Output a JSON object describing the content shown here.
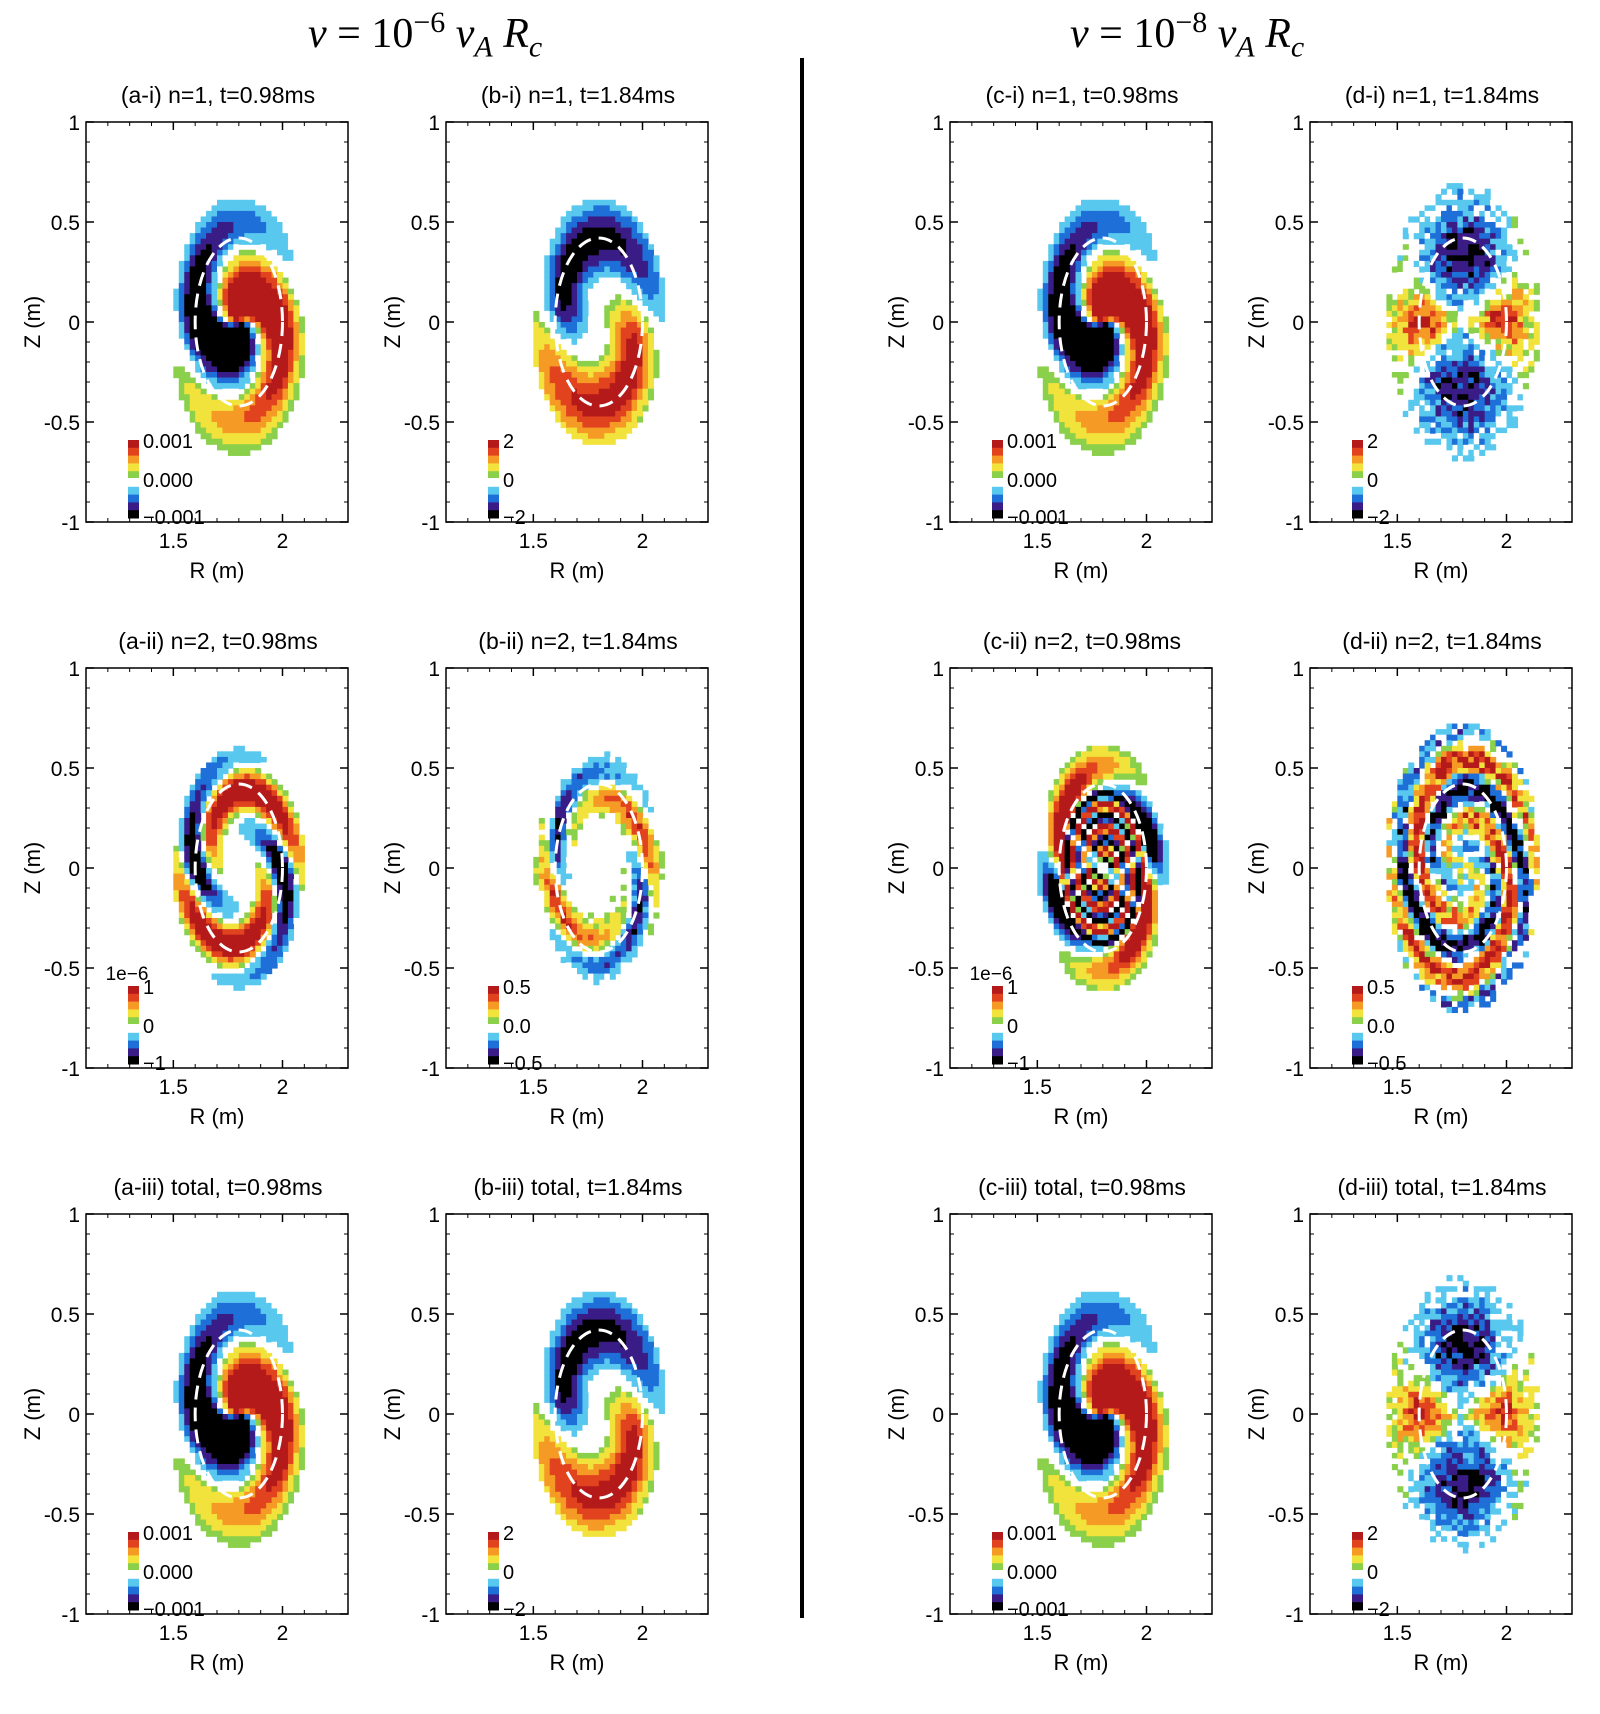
{
  "headers": {
    "left": {
      "nu": "ν",
      "eq": "= 10",
      "exp": "−6",
      "va": "v",
      "va_sub": "A",
      "rc": "R",
      "rc_sub": "c"
    },
    "right": {
      "nu": "ν",
      "eq": "= 10",
      "exp": "−8",
      "va": "v",
      "va_sub": "A",
      "rc": "R",
      "rc_sub": "c"
    }
  },
  "axes": {
    "xlabel": "R (m)",
    "ylabel": "Z (m)",
    "xticks": [
      "1.5",
      "2"
    ],
    "yticks": [
      "1",
      "0.5",
      "0",
      "-0.5",
      "-1"
    ],
    "xlim": [
      1.1,
      2.3
    ],
    "ylim": [
      -1,
      1
    ]
  },
  "colormap": [
    "#000000",
    "#3a1c86",
    "#1f6fd8",
    "#58c8ee",
    "#ffffff",
    "#8ad04a",
    "#f2e23c",
    "#f59a24",
    "#e2431f",
    "#b41a1a"
  ],
  "panels": [
    {
      "id": "a-i",
      "title": "(a-i) n=1, t=0.98ms",
      "cbar": [
        "0.001",
        "0.000",
        "−0.001"
      ],
      "cbar_exp": "",
      "pattern": "smooth"
    },
    {
      "id": "b-i",
      "title": "(b-i) n=1, t=1.84ms",
      "cbar": [
        "2",
        "0",
        "−2"
      ],
      "cbar_exp": "",
      "pattern": "smooth-b"
    },
    {
      "id": "c-i",
      "title": "(c-i) n=1, t=0.98ms",
      "cbar": [
        "0.001",
        "0.000",
        "−0.001"
      ],
      "cbar_exp": "",
      "pattern": "smooth"
    },
    {
      "id": "d-i",
      "title": "(d-i) n=1, t=1.84ms",
      "cbar": [
        "2",
        "0",
        "−2"
      ],
      "cbar_exp": "",
      "pattern": "noisy-b"
    },
    {
      "id": "a-ii",
      "title": "(a-ii) n=2, t=0.98ms",
      "cbar": [
        "1",
        "0",
        "−1"
      ],
      "cbar_exp": "1e−6",
      "pattern": "n2"
    },
    {
      "id": "b-ii",
      "title": "(b-ii) n=2, t=1.84ms",
      "cbar": [
        "0.5",
        "0.0",
        "−0.5"
      ],
      "cbar_exp": "",
      "pattern": "n2-weak"
    },
    {
      "id": "c-ii",
      "title": "(c-ii) n=2, t=0.98ms",
      "cbar": [
        "1",
        "0",
        "−1"
      ],
      "cbar_exp": "1e−6",
      "pattern": "spiral"
    },
    {
      "id": "d-ii",
      "title": "(d-ii) n=2, t=1.84ms",
      "cbar": [
        "0.5",
        "0.0",
        "−0.5"
      ],
      "cbar_exp": "",
      "pattern": "noisy-ring"
    },
    {
      "id": "a-iii",
      "title": "(a-iii) total, t=0.98ms",
      "cbar": [
        "0.001",
        "0.000",
        "−0.001"
      ],
      "cbar_exp": "",
      "pattern": "smooth"
    },
    {
      "id": "b-iii",
      "title": "(b-iii) total, t=1.84ms",
      "cbar": [
        "2",
        "0",
        "−2"
      ],
      "cbar_exp": "",
      "pattern": "smooth-b"
    },
    {
      "id": "c-iii",
      "title": "(c-iii) total, t=0.98ms",
      "cbar": [
        "0.001",
        "0.000",
        "−0.001"
      ],
      "cbar_exp": "",
      "pattern": "smooth"
    },
    {
      "id": "d-iii",
      "title": "(d-iii) total, t=1.84ms",
      "cbar": [
        "2",
        "0",
        "−2"
      ],
      "cbar_exp": "",
      "pattern": "noisy-b"
    }
  ],
  "chart_data": {
    "type": "heatmap",
    "xlabel": "R (m)",
    "ylabel": "Z (m)",
    "xlim": [
      1.1,
      2.3
    ],
    "ylim": [
      -1,
      1
    ],
    "xticks": [
      1.5,
      2
    ],
    "yticks": [
      -1,
      -0.5,
      0,
      0.5,
      1
    ],
    "overlay": "dashed white ellipse centred near R=1.8, Z=0",
    "panels": [
      {
        "title": "(a-i) n=1, t=0.98ms",
        "colorbar": [
          -0.001,
          0.0,
          0.001
        ]
      },
      {
        "title": "(b-i) n=1, t=1.84ms",
        "colorbar": [
          -2,
          0,
          2
        ]
      },
      {
        "title": "(c-i) n=1, t=0.98ms",
        "colorbar": [
          -0.001,
          0.0,
          0.001
        ]
      },
      {
        "title": "(d-i) n=1, t=1.84ms",
        "colorbar": [
          -2,
          0,
          2
        ]
      },
      {
        "title": "(a-ii) n=2, t=0.98ms",
        "colorbar": [
          -1,
          0,
          1
        ],
        "colorbar_scale": "1e-6"
      },
      {
        "title": "(b-ii) n=2, t=1.84ms",
        "colorbar": [
          -0.5,
          0.0,
          0.5
        ]
      },
      {
        "title": "(c-ii) n=2, t=0.98ms",
        "colorbar": [
          -1,
          0,
          1
        ],
        "colorbar_scale": "1e-6"
      },
      {
        "title": "(d-ii) n=2, t=1.84ms",
        "colorbar": [
          -0.5,
          0.0,
          0.5
        ]
      },
      {
        "title": "(a-iii) total, t=0.98ms",
        "colorbar": [
          -0.001,
          0.0,
          0.001
        ]
      },
      {
        "title": "(b-iii) total, t=1.84ms",
        "colorbar": [
          -2,
          0,
          2
        ]
      },
      {
        "title": "(c-iii) total, t=0.98ms",
        "colorbar": [
          -0.001,
          0.0,
          0.001
        ]
      },
      {
        "title": "(d-iii) total, t=1.84ms",
        "colorbar": [
          -2,
          0,
          2
        ]
      }
    ]
  }
}
